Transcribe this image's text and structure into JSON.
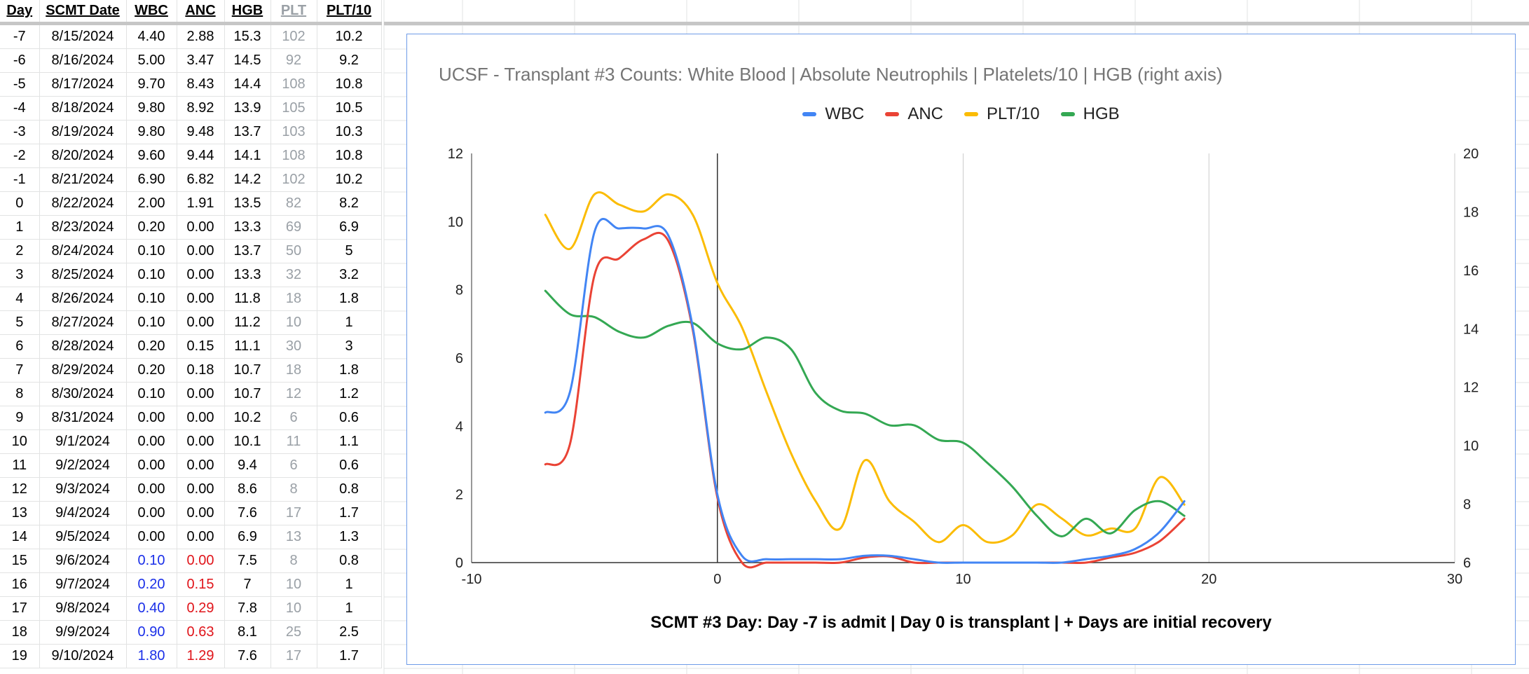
{
  "table": {
    "headers": [
      "Day",
      "SCMT Date",
      "WBC",
      "ANC",
      "HGB",
      "PLT",
      "PLT/10"
    ],
    "rows": [
      [
        "-7",
        "8/15/2024",
        "4.40",
        "2.88",
        "15.3",
        "102",
        "10.2"
      ],
      [
        "-6",
        "8/16/2024",
        "5.00",
        "3.47",
        "14.5",
        "92",
        "9.2"
      ],
      [
        "-5",
        "8/17/2024",
        "9.70",
        "8.43",
        "14.4",
        "108",
        "10.8"
      ],
      [
        "-4",
        "8/18/2024",
        "9.80",
        "8.92",
        "13.9",
        "105",
        "10.5"
      ],
      [
        "-3",
        "8/19/2024",
        "9.80",
        "9.48",
        "13.7",
        "103",
        "10.3"
      ],
      [
        "-2",
        "8/20/2024",
        "9.60",
        "9.44",
        "14.1",
        "108",
        "10.8"
      ],
      [
        "-1",
        "8/21/2024",
        "6.90",
        "6.82",
        "14.2",
        "102",
        "10.2"
      ],
      [
        "0",
        "8/22/2024",
        "2.00",
        "1.91",
        "13.5",
        "82",
        "8.2"
      ],
      [
        "1",
        "8/23/2024",
        "0.20",
        "0.00",
        "13.3",
        "69",
        "6.9"
      ],
      [
        "2",
        "8/24/2024",
        "0.10",
        "0.00",
        "13.7",
        "50",
        "5"
      ],
      [
        "3",
        "8/25/2024",
        "0.10",
        "0.00",
        "13.3",
        "32",
        "3.2"
      ],
      [
        "4",
        "8/26/2024",
        "0.10",
        "0.00",
        "11.8",
        "18",
        "1.8"
      ],
      [
        "5",
        "8/27/2024",
        "0.10",
        "0.00",
        "11.2",
        "10",
        "1"
      ],
      [
        "6",
        "8/28/2024",
        "0.20",
        "0.15",
        "11.1",
        "30",
        "3"
      ],
      [
        "7",
        "8/29/2024",
        "0.20",
        "0.18",
        "10.7",
        "18",
        "1.8"
      ],
      [
        "8",
        "8/30/2024",
        "0.10",
        "0.00",
        "10.7",
        "12",
        "1.2"
      ],
      [
        "9",
        "8/31/2024",
        "0.00",
        "0.00",
        "10.2",
        "6",
        "0.6"
      ],
      [
        "10",
        "9/1/2024",
        "0.00",
        "0.00",
        "10.1",
        "11",
        "1.1"
      ],
      [
        "11",
        "9/2/2024",
        "0.00",
        "0.00",
        "9.4",
        "6",
        "0.6"
      ],
      [
        "12",
        "9/3/2024",
        "0.00",
        "0.00",
        "8.6",
        "8",
        "0.8"
      ],
      [
        "13",
        "9/4/2024",
        "0.00",
        "0.00",
        "7.6",
        "17",
        "1.7"
      ],
      [
        "14",
        "9/5/2024",
        "0.00",
        "0.00",
        "6.9",
        "13",
        "1.3"
      ],
      [
        "15",
        "9/6/2024",
        "0.10",
        "0.00",
        "7.5",
        "8",
        "0.8"
      ],
      [
        "16",
        "9/7/2024",
        "0.20",
        "0.15",
        "7",
        "10",
        "1"
      ],
      [
        "17",
        "9/8/2024",
        "0.40",
        "0.29",
        "7.8",
        "10",
        "1"
      ],
      [
        "18",
        "9/9/2024",
        "0.90",
        "0.63",
        "8.1",
        "25",
        "2.5"
      ],
      [
        "19",
        "9/10/2024",
        "1.80",
        "1.29",
        "7.6",
        "17",
        "1.7"
      ]
    ],
    "colors": {
      "wbc_recovery": "#1a2fe8",
      "anc_recovery": "#e0141a",
      "plt_muted": "#9aa0a6"
    },
    "recovery_from_day": 15
  },
  "chart_data": {
    "type": "line",
    "title": "UCSF - Transplant #3 Counts: White Blood | Absolute Neutrophils | Platelets/10 | HGB (right axis)",
    "xlabel": "SCMT #3 Day: Day -7 is admit | Day 0 is transplant | + Days are initial recovery",
    "ylabel": "",
    "xlim": [
      -10,
      30
    ],
    "ylim": [
      0,
      12
    ],
    "y2lim": [
      6,
      20
    ],
    "x_ticks": [
      -10,
      0,
      10,
      20,
      30
    ],
    "y_ticks": [
      0,
      2,
      4,
      6,
      8,
      10,
      12
    ],
    "y2_ticks": [
      6,
      8,
      10,
      12,
      14,
      16,
      18,
      20
    ],
    "legend_position": "top-center",
    "grid": true,
    "reference_line_x": 0,
    "x": [
      -7,
      -6,
      -5,
      -4,
      -3,
      -2,
      -1,
      0,
      1,
      2,
      3,
      4,
      5,
      6,
      7,
      8,
      9,
      10,
      11,
      12,
      13,
      14,
      15,
      16,
      17,
      18,
      19
    ],
    "series": [
      {
        "name": "WBC",
        "axis": "left",
        "color": "#4285f4",
        "values": [
          4.4,
          5.0,
          9.7,
          9.8,
          9.8,
          9.6,
          6.9,
          2.0,
          0.2,
          0.1,
          0.1,
          0.1,
          0.1,
          0.2,
          0.2,
          0.1,
          0.0,
          0.0,
          0.0,
          0.0,
          0.0,
          0.0,
          0.1,
          0.2,
          0.4,
          0.9,
          1.8
        ]
      },
      {
        "name": "ANC",
        "axis": "left",
        "color": "#ea4335",
        "values": [
          2.88,
          3.47,
          8.43,
          8.92,
          9.48,
          9.44,
          6.82,
          1.91,
          0.0,
          0.0,
          0.0,
          0.0,
          0.0,
          0.15,
          0.18,
          0.0,
          0.0,
          0.0,
          0.0,
          0.0,
          0.0,
          0.0,
          0.0,
          0.15,
          0.29,
          0.63,
          1.29
        ]
      },
      {
        "name": "PLT/10",
        "axis": "left",
        "color": "#fbbc04",
        "values": [
          10.2,
          9.2,
          10.8,
          10.5,
          10.3,
          10.8,
          10.2,
          8.2,
          6.9,
          5,
          3.2,
          1.8,
          1,
          3,
          1.8,
          1.2,
          0.6,
          1.1,
          0.6,
          0.8,
          1.7,
          1.3,
          0.8,
          1,
          1,
          2.5,
          1.7
        ]
      },
      {
        "name": "HGB",
        "axis": "right",
        "color": "#34a853",
        "values": [
          15.3,
          14.5,
          14.4,
          13.9,
          13.7,
          14.1,
          14.2,
          13.5,
          13.3,
          13.7,
          13.3,
          11.8,
          11.2,
          11.1,
          10.7,
          10.7,
          10.2,
          10.1,
          9.4,
          8.6,
          7.6,
          6.9,
          7.5,
          7,
          7.8,
          8.1,
          7.6
        ]
      }
    ]
  }
}
